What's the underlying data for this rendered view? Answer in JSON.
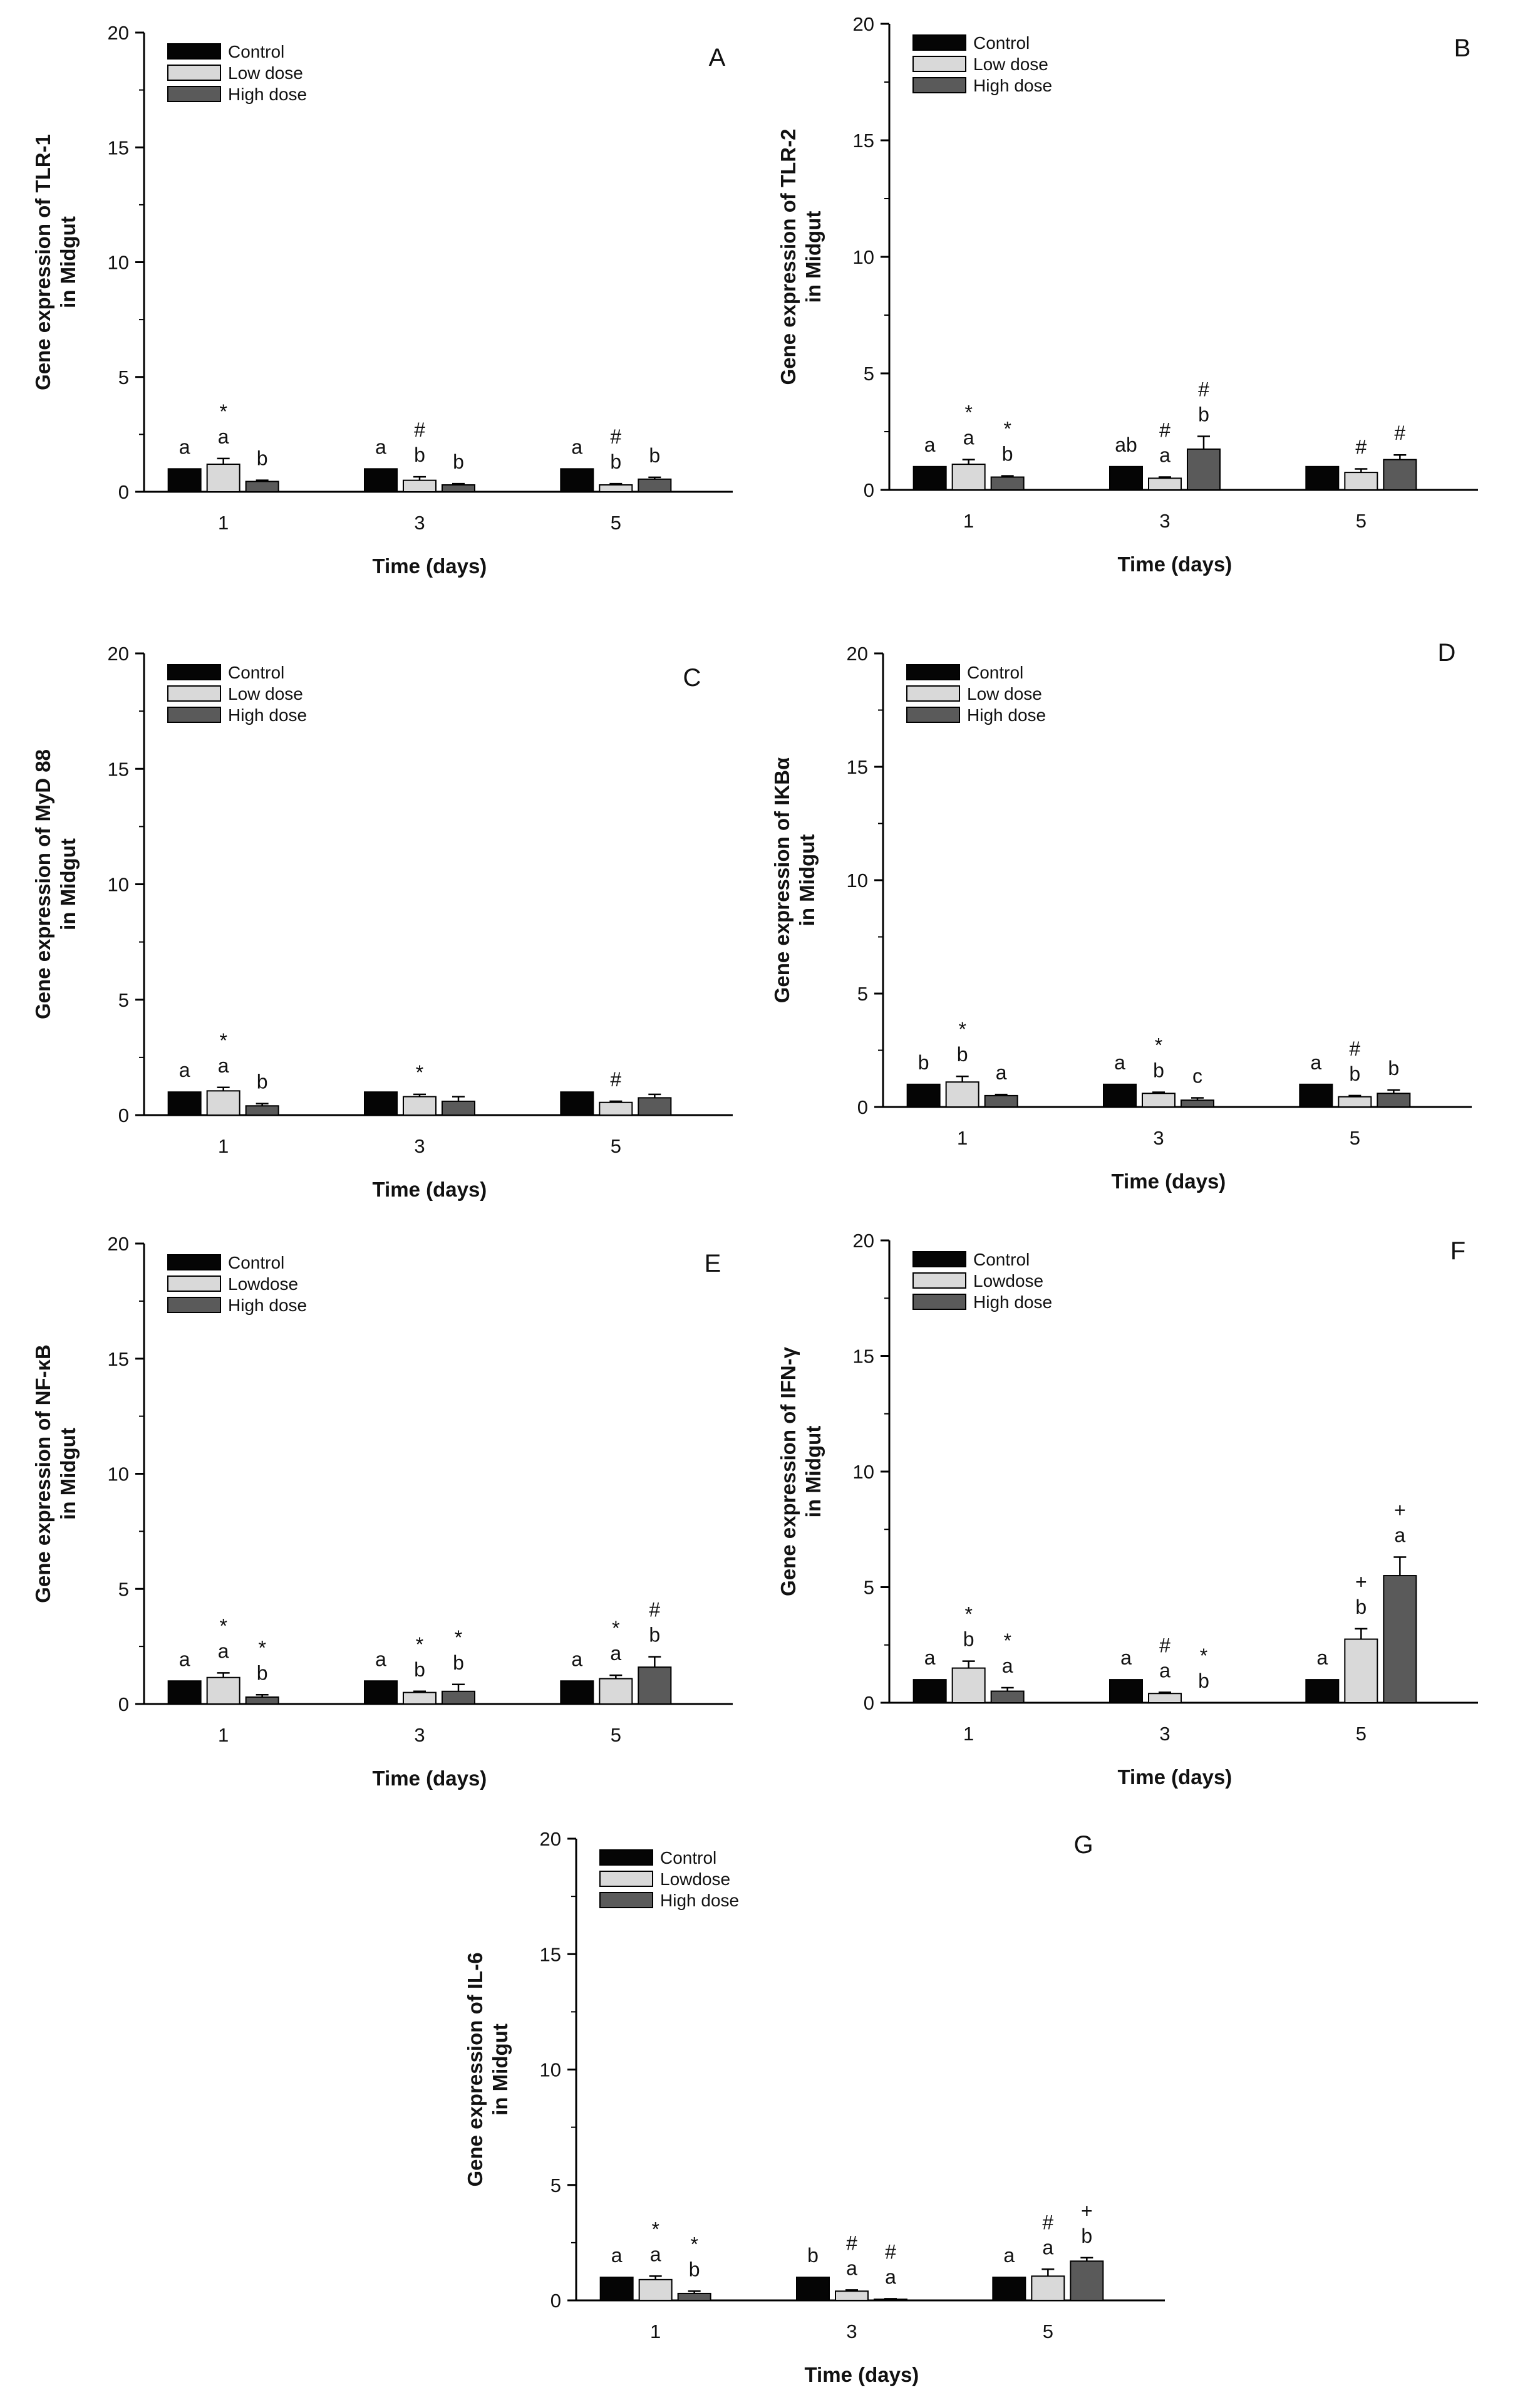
{
  "figure": {
    "legend": {
      "labels": [
        "Control",
        "Low dose",
        "High dose"
      ],
      "colors": [
        "#050505",
        "#d9d9d9",
        "#5a5a5a"
      ]
    },
    "axis_color": "#000000"
  },
  "chart_data": [
    {
      "type": "bar",
      "panel": "A",
      "ylabel": "Gene expression of TLR-1\nin Midgut",
      "xlabel": "Time (days)",
      "categories": [
        "1",
        "3",
        "5"
      ],
      "ylim": [
        0,
        20
      ],
      "yticks": [
        0,
        5,
        10,
        15,
        20
      ],
      "legend_labels": [
        "Control",
        "Low dose",
        "High dose"
      ],
      "series": [
        {
          "name": "Control",
          "values": [
            1.0,
            1.0,
            1.0
          ],
          "errors": [
            0,
            0,
            0
          ]
        },
        {
          "name": "Low dose",
          "values": [
            1.2,
            0.5,
            0.3
          ],
          "errors": [
            0.25,
            0.15,
            0.05
          ]
        },
        {
          "name": "High dose",
          "values": [
            0.45,
            0.3,
            0.55
          ],
          "errors": [
            0.05,
            0.05,
            0.08
          ]
        }
      ],
      "annotations": [
        [
          [
            "a"
          ],
          [
            "*",
            "a"
          ],
          [
            "b"
          ]
        ],
        [
          [
            "a"
          ],
          [
            "#",
            "b"
          ],
          [
            "b"
          ]
        ],
        [
          [
            "a"
          ],
          [
            "#",
            "b"
          ],
          [
            "b"
          ]
        ]
      ]
    },
    {
      "type": "bar",
      "panel": "B",
      "ylabel": "Gene expression of TLR-2\nin Midgut",
      "xlabel": "Time (days)",
      "categories": [
        "1",
        "3",
        "5"
      ],
      "ylim": [
        0,
        20
      ],
      "yticks": [
        0,
        5,
        10,
        15,
        20
      ],
      "legend_labels": [
        "Control",
        "Low dose",
        "High dose"
      ],
      "series": [
        {
          "name": "Control",
          "values": [
            1.0,
            1.0,
            1.0
          ],
          "errors": [
            0,
            0,
            0
          ]
        },
        {
          "name": "Low dose",
          "values": [
            1.1,
            0.5,
            0.75
          ],
          "errors": [
            0.2,
            0.05,
            0.15
          ]
        },
        {
          "name": "High dose",
          "values": [
            0.55,
            1.75,
            1.3
          ],
          "errors": [
            0.05,
            0.55,
            0.2
          ]
        }
      ],
      "annotations": [
        [
          [
            "a"
          ],
          [
            "*",
            "a"
          ],
          [
            "*",
            "b"
          ]
        ],
        [
          [
            "ab"
          ],
          [
            "#",
            "a"
          ],
          [
            "#",
            "b"
          ]
        ],
        [
          [],
          [
            "#"
          ],
          [
            "#"
          ]
        ]
      ]
    },
    {
      "type": "bar",
      "panel": "C",
      "ylabel": "Gene expression of MyD 88\nin Midgut",
      "xlabel": "Time (days)",
      "categories": [
        "1",
        "3",
        "5"
      ],
      "ylim": [
        0,
        20
      ],
      "yticks": [
        0,
        5,
        10,
        15,
        20
      ],
      "legend_labels": [
        "Control",
        "Low dose",
        "High dose"
      ],
      "series": [
        {
          "name": "Control",
          "values": [
            1.0,
            1.0,
            1.0
          ],
          "errors": [
            0,
            0,
            0
          ]
        },
        {
          "name": "Low dose",
          "values": [
            1.05,
            0.8,
            0.55
          ],
          "errors": [
            0.15,
            0.1,
            0.05
          ]
        },
        {
          "name": "High dose",
          "values": [
            0.4,
            0.6,
            0.75
          ],
          "errors": [
            0.1,
            0.2,
            0.15
          ]
        }
      ],
      "annotations": [
        [
          [
            "a"
          ],
          [
            "*",
            "a"
          ],
          [
            "b"
          ]
        ],
        [
          [],
          [
            "*"
          ],
          []
        ],
        [
          [],
          [
            "#"
          ],
          []
        ]
      ]
    },
    {
      "type": "bar",
      "panel": "D",
      "ylabel": "Gene expression of IKBα\nin Midgut",
      "xlabel": "Time (days)",
      "categories": [
        "1",
        "3",
        "5"
      ],
      "ylim": [
        0,
        20
      ],
      "yticks": [
        0,
        5,
        10,
        15,
        20
      ],
      "legend_labels": [
        "Control",
        "Low dose",
        "High dose"
      ],
      "series": [
        {
          "name": "Control",
          "values": [
            1.0,
            1.0,
            1.0
          ],
          "errors": [
            0,
            0,
            0
          ]
        },
        {
          "name": "Low dose",
          "values": [
            1.1,
            0.6,
            0.45
          ],
          "errors": [
            0.25,
            0.05,
            0.05
          ]
        },
        {
          "name": "High dose",
          "values": [
            0.5,
            0.3,
            0.6
          ],
          "errors": [
            0.05,
            0.1,
            0.15
          ]
        }
      ],
      "annotations": [
        [
          [
            "b"
          ],
          [
            "*",
            "b"
          ],
          [
            "a"
          ]
        ],
        [
          [
            "a"
          ],
          [
            "*",
            "b"
          ],
          [
            "c"
          ]
        ],
        [
          [
            "a"
          ],
          [
            "#",
            "b"
          ],
          [
            "b"
          ]
        ]
      ]
    },
    {
      "type": "bar",
      "panel": "E",
      "ylabel": "Gene expression of  NF-κB\nin Midgut",
      "xlabel": "Time (days)",
      "categories": [
        "1",
        "3",
        "5"
      ],
      "ylim": [
        0,
        20
      ],
      "yticks": [
        0,
        5,
        10,
        15,
        20
      ],
      "legend_labels": [
        "Control",
        "Lowdose",
        "High dose"
      ],
      "series": [
        {
          "name": "Control",
          "values": [
            1.0,
            1.0,
            1.0
          ],
          "errors": [
            0,
            0,
            0
          ]
        },
        {
          "name": "Low dose",
          "values": [
            1.15,
            0.5,
            1.1
          ],
          "errors": [
            0.2,
            0.05,
            0.15
          ]
        },
        {
          "name": "High dose",
          "values": [
            0.3,
            0.55,
            1.6
          ],
          "errors": [
            0.1,
            0.3,
            0.45
          ]
        }
      ],
      "annotations": [
        [
          [
            "a"
          ],
          [
            "*",
            "a"
          ],
          [
            "*",
            "b"
          ]
        ],
        [
          [
            "a"
          ],
          [
            "*",
            "b"
          ],
          [
            "*",
            "b"
          ]
        ],
        [
          [
            "a"
          ],
          [
            "*",
            "a"
          ],
          [
            "#",
            "b"
          ]
        ]
      ]
    },
    {
      "type": "bar",
      "panel": "F",
      "ylabel": "Gene expression of IFN-γ\nin Midgut",
      "xlabel": "Time (days)",
      "categories": [
        "1",
        "3",
        "5"
      ],
      "ylim": [
        0,
        20
      ],
      "yticks": [
        0,
        5,
        10,
        15,
        20
      ],
      "legend_labels": [
        "Control",
        "Lowdose",
        "High dose"
      ],
      "series": [
        {
          "name": "Control",
          "values": [
            1.0,
            1.0,
            1.0
          ],
          "errors": [
            0,
            0,
            0
          ]
        },
        {
          "name": "Low dose",
          "values": [
            1.5,
            0.4,
            2.75
          ],
          "errors": [
            0.3,
            0.05,
            0.45
          ]
        },
        {
          "name": "High dose",
          "values": [
            0.5,
            0.0,
            5.5
          ],
          "errors": [
            0.15,
            0,
            0.8
          ]
        }
      ],
      "annotations": [
        [
          [
            "a"
          ],
          [
            "*",
            "b"
          ],
          [
            "*",
            "a"
          ]
        ],
        [
          [
            "a"
          ],
          [
            "#",
            "a"
          ],
          [
            "*",
            "b"
          ]
        ],
        [
          [
            "a"
          ],
          [
            "+",
            "b"
          ],
          [
            "+",
            "a"
          ]
        ]
      ]
    },
    {
      "type": "bar",
      "panel": "G",
      "ylabel": "Gene expression of IL-6\nin Midgut",
      "xlabel": "Time (days)",
      "categories": [
        "1",
        "3",
        "5"
      ],
      "ylim": [
        0,
        20
      ],
      "yticks": [
        0,
        5,
        10,
        15,
        20
      ],
      "legend_labels": [
        "Control",
        "Lowdose",
        "High dose"
      ],
      "series": [
        {
          "name": "Control",
          "values": [
            1.0,
            1.0,
            1.0
          ],
          "errors": [
            0,
            0,
            0
          ]
        },
        {
          "name": "Low dose",
          "values": [
            0.9,
            0.4,
            1.05
          ],
          "errors": [
            0.15,
            0.05,
            0.3
          ]
        },
        {
          "name": "High dose",
          "values": [
            0.3,
            0.05,
            1.7
          ],
          "errors": [
            0.1,
            0.02,
            0.15
          ]
        }
      ],
      "annotations": [
        [
          [
            "a"
          ],
          [
            "*",
            "a"
          ],
          [
            "*",
            "b"
          ]
        ],
        [
          [
            "b"
          ],
          [
            "#",
            "a"
          ],
          [
            "#",
            "a"
          ]
        ],
        [
          [
            "a"
          ],
          [
            "#",
            "a"
          ],
          [
            "+",
            "b"
          ]
        ]
      ]
    }
  ]
}
